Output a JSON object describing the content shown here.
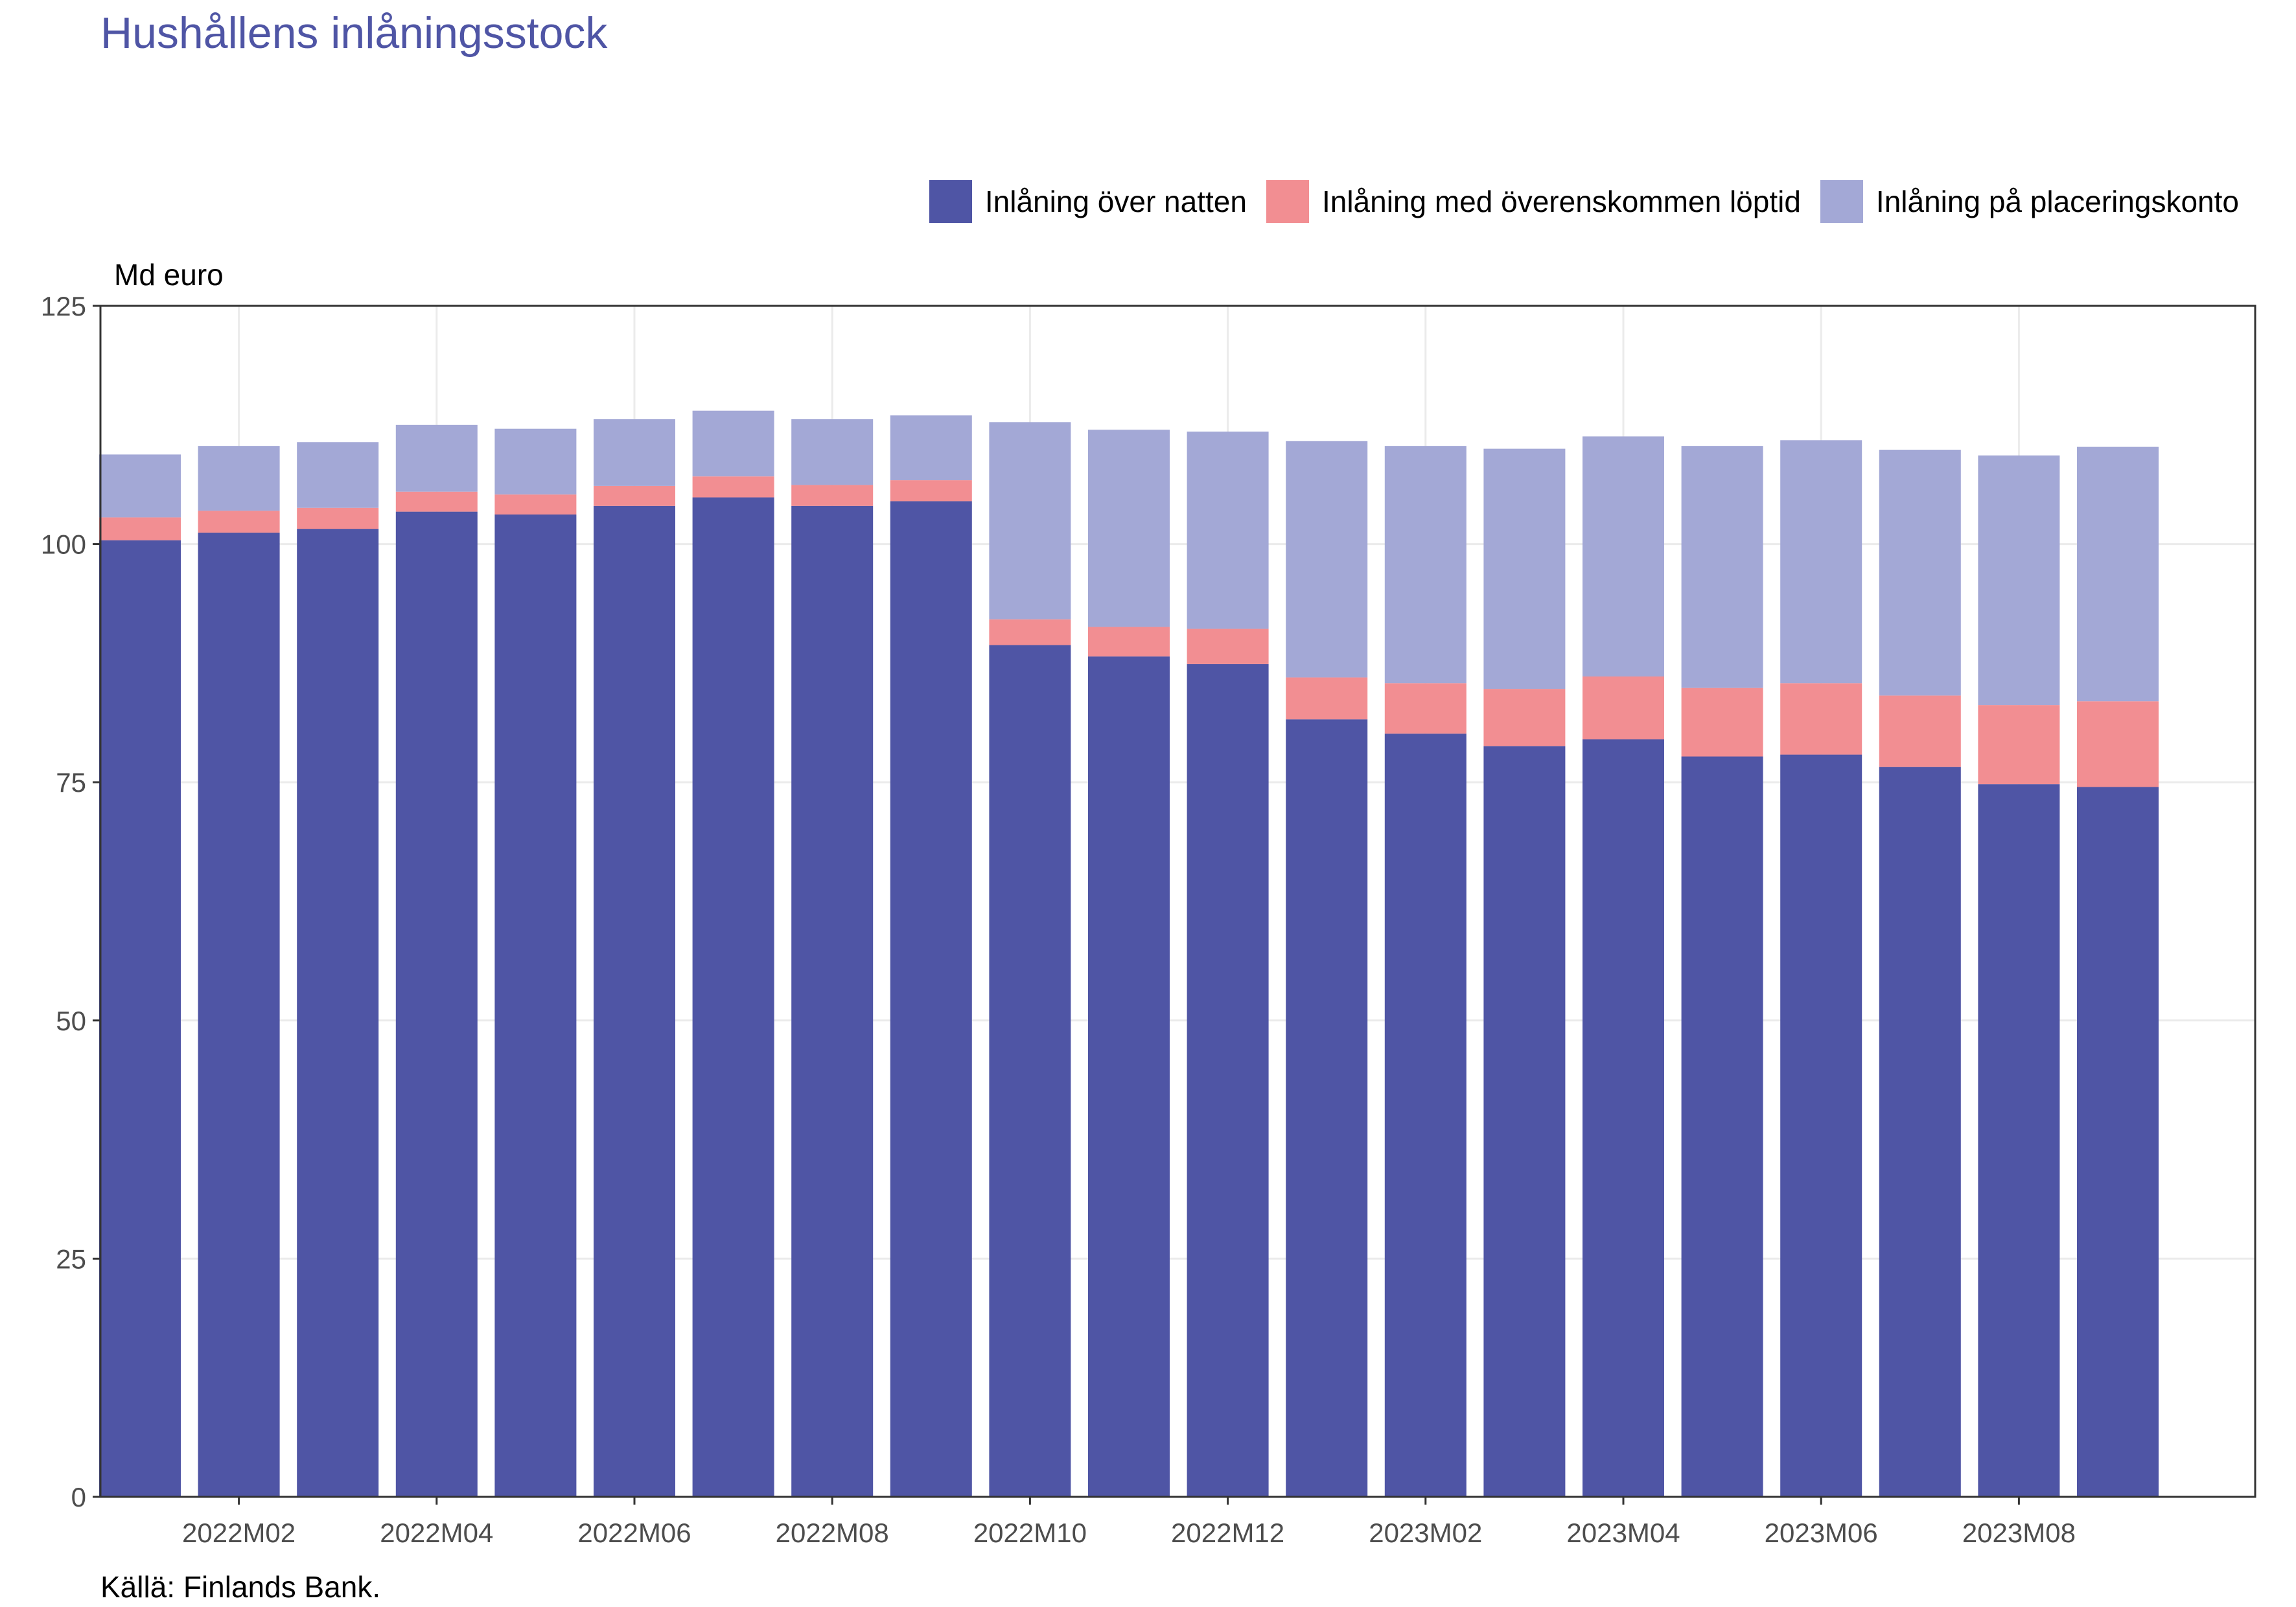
{
  "title": "Hushållens inlåningsstock",
  "source": "Källä: Finlands Bank.",
  "colors": {
    "overnight": "#4f55a5",
    "agreed_maturity": "#f28e92",
    "redeemable_notice": "#a3a8d6",
    "grid": "#ebebeb",
    "axis": "#333333",
    "title": "#4f55a5"
  },
  "legend": {
    "items": [
      {
        "label": "Inlåning över natten",
        "color": "#4f55a5"
      },
      {
        "label": "Inlåning med överenskommen löptid",
        "color": "#f28e92"
      },
      {
        "label": "Inlåning på placeringskonto",
        "color": "#a3a8d6"
      }
    ]
  },
  "chart_data": {
    "type": "bar",
    "stacked": true,
    "ylabel": "Md euro",
    "ylim": [
      0,
      125
    ],
    "yticks": [
      0,
      25,
      50,
      75,
      100,
      125
    ],
    "grid": true,
    "legend_position": "top-right",
    "categories": [
      "2022M01",
      "2022M02",
      "2022M03",
      "2022M04",
      "2022M05",
      "2022M06",
      "2022M07",
      "2022M08",
      "2022M09",
      "2022M10",
      "2022M11",
      "2022M12",
      "2023M01",
      "2023M02",
      "2023M03",
      "2023M04",
      "2023M05",
      "2023M06",
      "2023M07",
      "2023M08",
      "2023M09"
    ],
    "xtick_labels": [
      "2022M02",
      "2022M04",
      "2022M06",
      "2022M08",
      "2022M10",
      "2022M12",
      "2023M02",
      "2023M04",
      "2023M06",
      "2023M08"
    ],
    "series": [
      {
        "name": "Inlåning över natten",
        "values": [
          100.4,
          101.2,
          101.6,
          103.4,
          103.1,
          104.0,
          104.9,
          104.0,
          104.5,
          89.4,
          88.2,
          87.4,
          81.6,
          80.1,
          78.8,
          79.5,
          77.7,
          77.9,
          76.6,
          74.8,
          74.5
        ]
      },
      {
        "name": "Inlåning med överenskommen löptid",
        "values": [
          2.4,
          2.3,
          2.2,
          2.1,
          2.1,
          2.1,
          2.2,
          2.2,
          2.2,
          2.7,
          3.1,
          3.7,
          4.4,
          5.3,
          6.0,
          6.6,
          7.2,
          7.5,
          7.5,
          8.3,
          9.0
        ]
      },
      {
        "name": "Inlåning på placeringskonto",
        "values": [
          6.6,
          6.8,
          6.9,
          7.0,
          6.9,
          7.0,
          6.9,
          6.9,
          6.8,
          20.7,
          20.7,
          20.7,
          24.8,
          24.9,
          25.2,
          25.2,
          25.4,
          25.5,
          25.8,
          26.2,
          26.7
        ]
      }
    ]
  }
}
